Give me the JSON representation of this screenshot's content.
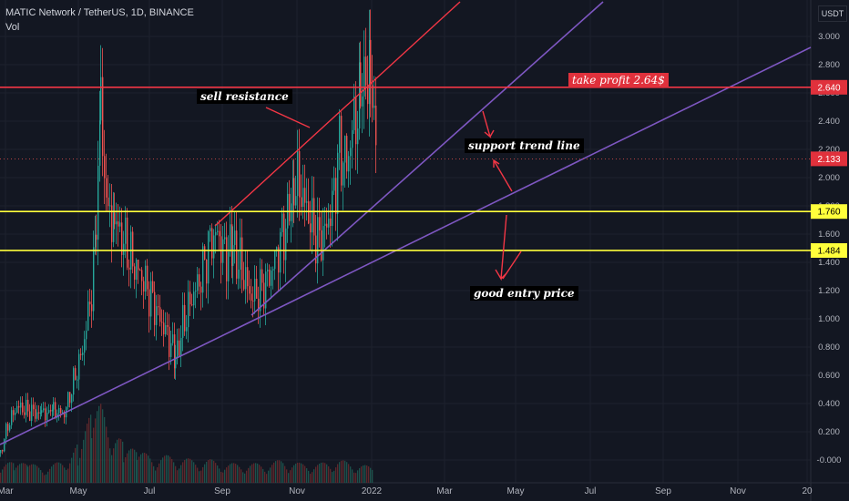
{
  "header": {
    "symbol": "MATIC Network / TetherUS, 1D, BINANCE",
    "volume_label": "Vol",
    "currency": "USDT"
  },
  "chart_data": {
    "type": "candlestick",
    "x_ticks": [
      "Mar",
      "May",
      "Jul",
      "Sep",
      "Nov",
      "2022",
      "Mar",
      "May",
      "Jul",
      "Sep",
      "Nov",
      "20"
    ],
    "y_ticks": [
      "3.000",
      "2.800",
      "2.600",
      "2.400",
      "2.200",
      "2.000",
      "1.800",
      "1.600",
      "1.400",
      "1.200",
      "1.000",
      "0.800",
      "0.600",
      "0.400",
      "0.200",
      "-0.000"
    ],
    "ylim": [
      -0.05,
      3.25
    ],
    "price_labels": [
      {
        "value": "2.640",
        "color": "#e0313c",
        "text_color": "#ffffff"
      },
      {
        "value": "2.133",
        "color": "#e0313c",
        "text_color": "#ffffff"
      },
      {
        "value": "1.760",
        "color": "#ffff3b",
        "text_color": "#000000"
      },
      {
        "value": "1.484",
        "color": "#ffff3b",
        "text_color": "#000000"
      }
    ],
    "horizontal_lines": [
      {
        "y": 2.64,
        "color": "#f23645"
      },
      {
        "y": 1.76,
        "color": "#ffff3b"
      },
      {
        "y": 1.484,
        "color": "#ffff3b"
      }
    ],
    "current_price": 2.133,
    "annotations": {
      "sell_resistance": "sell resistance",
      "take_profit": "take profit 2.64$",
      "support_trend_line": "support trend line",
      "good_entry_price": "good entry price"
    },
    "price_path": [
      [
        0,
        0.05
      ],
      [
        8,
        0.25
      ],
      [
        18,
        0.38
      ],
      [
        30,
        0.35
      ],
      [
        45,
        0.32
      ],
      [
        58,
        0.35
      ],
      [
        70,
        0.33
      ],
      [
        80,
        0.55
      ],
      [
        90,
        0.78
      ],
      [
        100,
        1.2
      ],
      [
        105,
        1.6
      ],
      [
        110,
        2.55
      ],
      [
        114,
        2.0
      ],
      [
        118,
        1.75
      ],
      [
        125,
        1.7
      ],
      [
        135,
        1.55
      ],
      [
        145,
        1.4
      ],
      [
        155,
        1.3
      ],
      [
        165,
        1.15
      ],
      [
        175,
        1.0
      ],
      [
        185,
        0.85
      ],
      [
        192,
        0.72
      ],
      [
        200,
        0.95
      ],
      [
        210,
        1.15
      ],
      [
        220,
        1.3
      ],
      [
        230,
        1.55
      ],
      [
        238,
        1.6
      ],
      [
        246,
        1.45
      ],
      [
        255,
        1.5
      ],
      [
        265,
        1.35
      ],
      [
        275,
        1.15
      ],
      [
        285,
        1.2
      ],
      [
        295,
        1.3
      ],
      [
        305,
        1.5
      ],
      [
        315,
        1.7
      ],
      [
        322,
        2.0
      ],
      [
        330,
        1.9
      ],
      [
        340,
        1.7
      ],
      [
        348,
        1.55
      ],
      [
        356,
        1.62
      ],
      [
        364,
        1.8
      ],
      [
        372,
        2.2
      ],
      [
        380,
        2.1
      ],
      [
        388,
        2.4
      ],
      [
        395,
        2.5
      ],
      [
        401,
        2.78
      ],
      [
        406,
        2.62
      ],
      [
        410,
        2.4
      ],
      [
        414,
        2.13
      ]
    ],
    "volumes": [
      [
        0,
        0.06
      ],
      [
        15,
        0.05
      ],
      [
        30,
        0.05
      ],
      [
        50,
        0.04
      ],
      [
        70,
        0.06
      ],
      [
        85,
        0.1
      ],
      [
        100,
        0.18
      ],
      [
        110,
        0.2
      ],
      [
        120,
        0.16
      ],
      [
        135,
        0.1
      ],
      [
        150,
        0.08
      ],
      [
        170,
        0.07
      ],
      [
        190,
        0.07
      ],
      [
        210,
        0.06
      ],
      [
        230,
        0.06
      ],
      [
        250,
        0.05
      ],
      [
        270,
        0.05
      ],
      [
        290,
        0.05
      ],
      [
        310,
        0.06
      ],
      [
        330,
        0.05
      ],
      [
        350,
        0.05
      ],
      [
        370,
        0.06
      ],
      [
        390,
        0.05
      ],
      [
        410,
        0.04
      ]
    ]
  }
}
